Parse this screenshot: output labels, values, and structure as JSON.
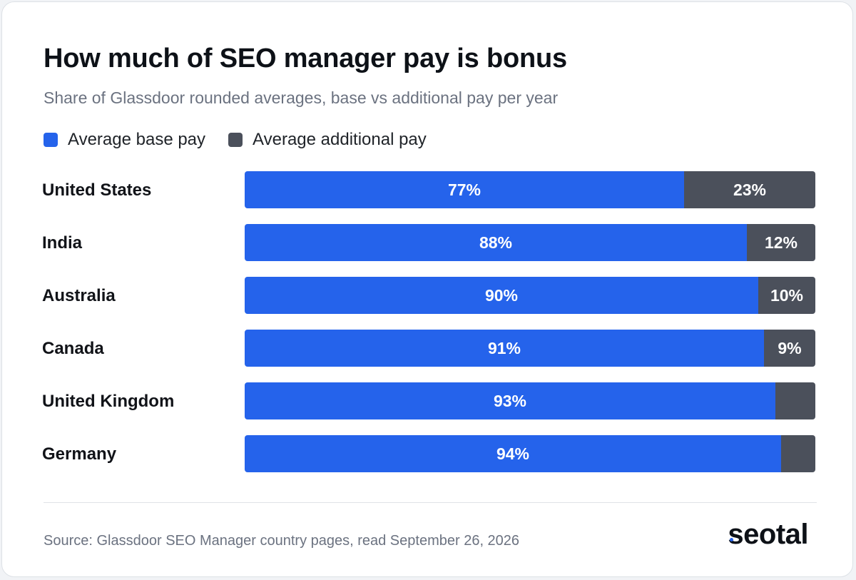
{
  "chart_data": {
    "type": "bar",
    "orientation": "horizontal",
    "stacked": true,
    "title": "How much of SEO manager pay is bonus",
    "subtitle": "Share of Glassdoor rounded averages, base vs additional pay per year",
    "categories": [
      "United States",
      "India",
      "Australia",
      "Canada",
      "United Kingdom",
      "Germany"
    ],
    "series": [
      {
        "name": "Average base pay",
        "color": "#2563eb",
        "values": [
          77,
          88,
          90,
          91,
          93,
          94
        ],
        "labels": [
          "77%",
          "88%",
          "90%",
          "91%",
          "93%",
          "94%"
        ]
      },
      {
        "name": "Average additional pay",
        "color": "#4b505b",
        "values": [
          23,
          12,
          10,
          9,
          7,
          6
        ],
        "labels": [
          "23%",
          "12%",
          "10%",
          "9%",
          "",
          ""
        ]
      }
    ],
    "xlim": [
      0,
      100
    ],
    "grid": false,
    "legend_position": "top-left"
  },
  "footer": {
    "source": "Source: Glassdoor SEO Manager country pages, read September 26, 2026",
    "logo_text": "seotal",
    "logo_accent_color": "#2563eb"
  }
}
